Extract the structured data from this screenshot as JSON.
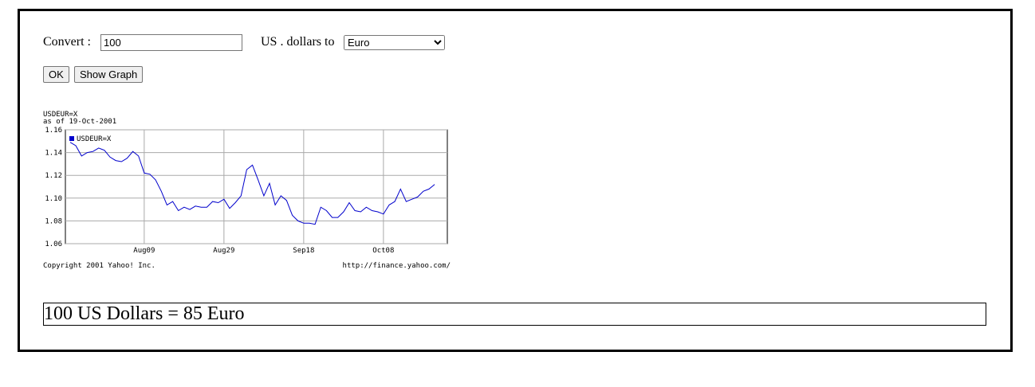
{
  "form": {
    "convert_label": "Convert :",
    "amount": "100",
    "unit_label": "US . dollars to",
    "currency": "Euro",
    "ok_button": "OK",
    "graph_button": "Show Graph"
  },
  "chart_data": {
    "type": "line",
    "title": "USDEUR=X",
    "subtitle": "as of 19-Oct-2001",
    "categories": [
      null,
      null,
      null,
      null,
      null,
      null,
      null,
      null,
      null,
      null,
      null,
      null,
      null,
      "Aug09",
      null,
      null,
      null,
      null,
      null,
      null,
      null,
      null,
      null,
      null,
      null,
      null,
      null,
      "Aug29",
      null,
      null,
      null,
      null,
      null,
      null,
      null,
      null,
      null,
      null,
      null,
      null,
      null,
      "Sep18",
      null,
      null,
      null,
      null,
      null,
      null,
      null,
      null,
      null,
      null,
      null,
      null,
      null,
      "Oct08",
      null,
      null,
      null,
      null,
      null,
      null,
      null,
      null,
      null
    ],
    "series": [
      {
        "name": "USDEUR=X",
        "color": "#0000cc",
        "values": [
          1.149,
          1.146,
          1.137,
          1.14,
          1.141,
          1.144,
          1.142,
          1.136,
          1.133,
          1.132,
          1.135,
          1.141,
          1.137,
          1.122,
          1.121,
          1.116,
          1.106,
          1.094,
          1.097,
          1.089,
          1.092,
          1.09,
          1.093,
          1.092,
          1.092,
          1.097,
          1.096,
          1.099,
          1.091,
          1.096,
          1.102,
          1.125,
          1.129,
          1.116,
          1.102,
          1.113,
          1.094,
          1.102,
          1.098,
          1.085,
          1.08,
          1.078,
          1.078,
          1.077,
          1.092,
          1.089,
          1.083,
          1.083,
          1.088,
          1.096,
          1.089,
          1.088,
          1.092,
          1.089,
          1.088,
          1.086,
          1.094,
          1.097,
          1.108,
          1.097,
          1.099,
          1.101,
          1.106,
          1.108,
          1.112
        ]
      }
    ],
    "ylim": [
      1.06,
      1.16
    ],
    "yticks": [
      1.06,
      1.08,
      {
        "value": 1.1,
        "label": "1.10"
      },
      1.12,
      1.14,
      1.16
    ],
    "grid": true,
    "footer_left": "Copyright 2001 Yahoo! Inc.",
    "footer_right": "http://finance.yahoo.com/"
  },
  "result": "100 US Dollars = 85 Euro"
}
